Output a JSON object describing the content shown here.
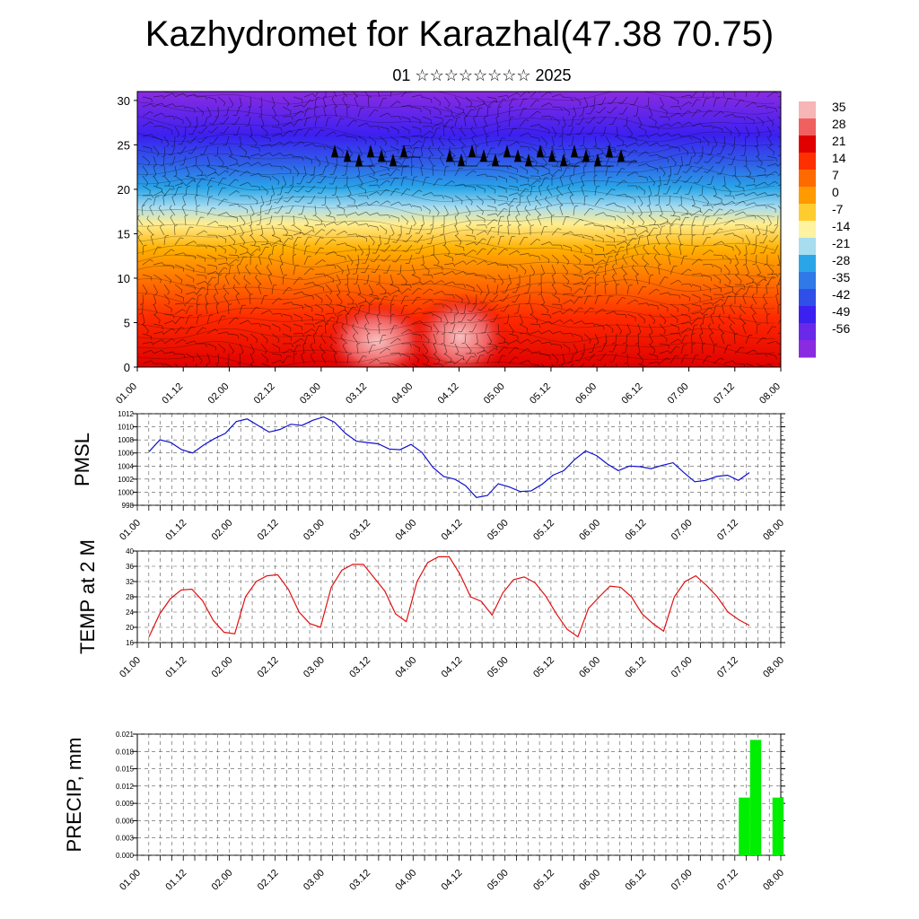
{
  "title": "Kazhydromet for Karazhal(47.38 70.75)",
  "subtitle": "01 ☆☆☆☆☆☆☆☆ 2025",
  "chart_data": [
    {
      "type": "heatmap",
      "yticks": [
        "0",
        "5",
        "10",
        "15",
        "20",
        "25",
        "30"
      ],
      "ylim": [
        0,
        31
      ],
      "xticks": [
        "01.00",
        "01.12",
        "02.00",
        "02.12",
        "03.00",
        "03.12",
        "04.00",
        "04.12",
        "05.00",
        "05.12",
        "06.00",
        "06.12",
        "07.00",
        "07.12",
        "08.00"
      ],
      "colorbar_labels": [
        "35",
        "28",
        "21",
        "14",
        "7",
        "0",
        "-7",
        "-14",
        "-21",
        "-28",
        "-35",
        "-42",
        "-49",
        "-56"
      ],
      "colors": [
        "#8a2be2",
        "#3b20f0",
        "#2f5fe8",
        "#2aa6e8",
        "#9edcf0",
        "#fff4a0",
        "#ffc020",
        "#ff8a00",
        "#ff3a00",
        "#e00000",
        "#f4a0a0"
      ],
      "contour_bands": [
        -63,
        -56,
        -49,
        -42,
        -35,
        -28,
        -21,
        -14,
        -7,
        0,
        7,
        14,
        21,
        28,
        35,
        42
      ]
    },
    {
      "type": "line",
      "ylabel": "PMSL",
      "ylim": [
        998,
        1012
      ],
      "yticks": [
        "998",
        "1000",
        "1002",
        "1004",
        "1006",
        "1008",
        "1010",
        "1012"
      ],
      "xticks": [
        "01.00",
        "01.12",
        "02.00",
        "02.12",
        "03.00",
        "03.12",
        "04.00",
        "04.12",
        "05.00",
        "05.12",
        "06.00",
        "06.12",
        "07.00",
        "07.12",
        "08.00"
      ],
      "color": "#1010d0",
      "values": [
        1006.2,
        1008.0,
        1007.6,
        1006.5,
        1006.0,
        1007.2,
        1008.2,
        1009.0,
        1010.8,
        1011.2,
        1010.2,
        1009.2,
        1009.6,
        1010.4,
        1010.2,
        1011.0,
        1011.5,
        1010.7,
        1009.0,
        1007.8,
        1007.6,
        1007.4,
        1006.6,
        1006.5,
        1007.3,
        1006.1,
        1003.8,
        1002.4,
        1002.0,
        1001.0,
        999.2,
        999.5,
        1001.3,
        1000.8,
        1000.1,
        1000.2,
        1001.2,
        1002.6,
        1003.3,
        1005.0,
        1006.3,
        1005.6,
        1004.3,
        1003.3,
        1004.0,
        1003.9,
        1003.6,
        1004.1,
        1004.5,
        1003.0,
        1001.6,
        1001.8,
        1002.4,
        1002.6,
        1001.8,
        1003.0
      ]
    },
    {
      "type": "line",
      "ylabel": "TEMP at 2 M",
      "ylim": [
        16,
        40
      ],
      "yticks": [
        "16",
        "20",
        "24",
        "28",
        "32",
        "36",
        "40"
      ],
      "xticks": [
        "01.00",
        "01.12",
        "02.00",
        "02.12",
        "03.00",
        "03.12",
        "04.00",
        "04.12",
        "05.00",
        "05.12",
        "06.00",
        "06.12",
        "07.00",
        "07.12",
        "08.00"
      ],
      "color": "#e01010",
      "values": [
        17.5,
        23.5,
        27.5,
        29.8,
        30.0,
        27.0,
        21.8,
        18.7,
        18.3,
        28.0,
        32.0,
        33.5,
        33.8,
        30.0,
        24.0,
        21.0,
        20.0,
        30.5,
        35.0,
        36.5,
        36.5,
        33.0,
        29.5,
        23.5,
        21.5,
        32.0,
        37.0,
        38.5,
        38.5,
        34.0,
        28.0,
        26.8,
        23.2,
        29.0,
        32.5,
        33.2,
        31.7,
        28.2,
        23.5,
        19.5,
        17.5,
        25.0,
        28.0,
        30.8,
        30.5,
        28.0,
        23.5,
        21.0,
        19.0,
        28.0,
        32.0,
        33.5,
        31.0,
        28.0,
        24.0,
        22.0,
        20.5
      ]
    },
    {
      "type": "bar",
      "ylabel": "PRECIP, mm",
      "ylim": [
        0,
        0.021
      ],
      "yticks": [
        "0.000",
        "0.003",
        "0.006",
        "0.009",
        "0.012",
        "0.015",
        "0.018",
        "0.021"
      ],
      "xticks": [
        "01.00",
        "01.12",
        "02.00",
        "02.12",
        "03.00",
        "03.12",
        "04.00",
        "04.12",
        "05.00",
        "05.12",
        "06.00",
        "06.12",
        "07.00",
        "07.12",
        "08.00"
      ],
      "color": "#00ee00",
      "bars": [
        {
          "t": 53,
          "value": 0.01
        },
        {
          "t": 54,
          "value": 0.02
        },
        {
          "t": 56,
          "value": 0.01
        }
      ]
    }
  ]
}
